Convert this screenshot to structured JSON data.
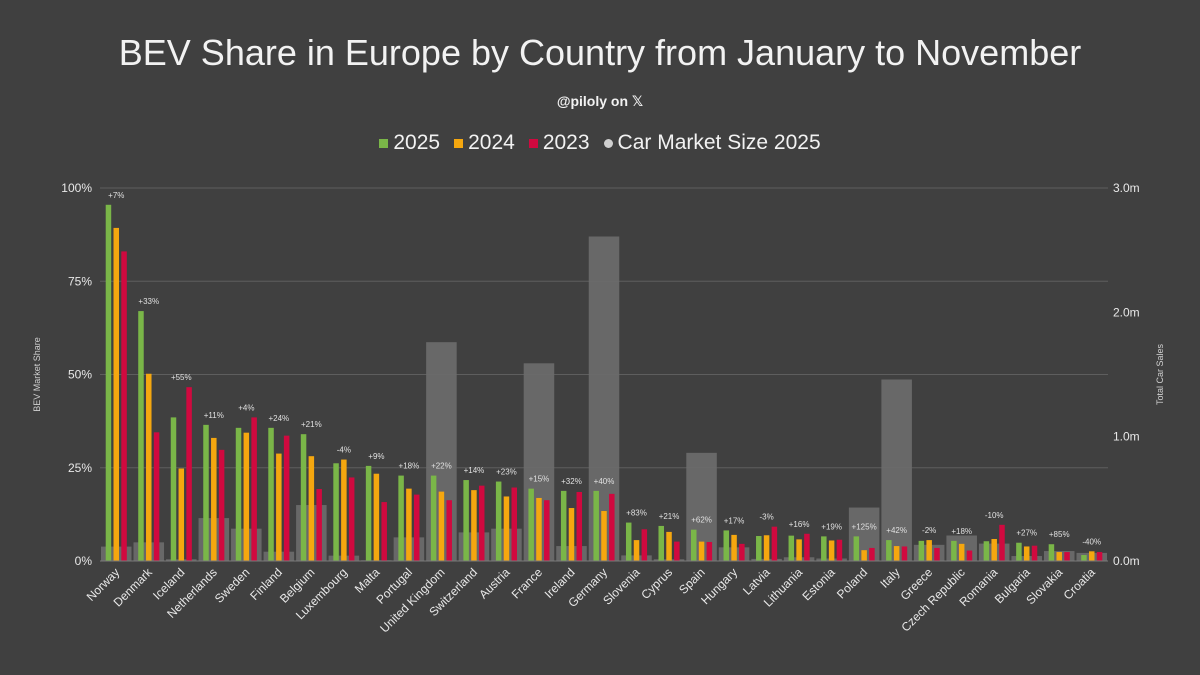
{
  "title": "BEV Share in Europe by Country from January to November",
  "subtitle": "@piloly on 𝕏",
  "legend": [
    {
      "label": "2025",
      "color": "#7ab648"
    },
    {
      "label": "2024",
      "color": "#f5a70f"
    },
    {
      "label": "2023",
      "color": "#d0093f"
    },
    {
      "label": "Car Market Size 2025",
      "color": "#d0d0d0"
    }
  ],
  "chart_data": {
    "type": "bar",
    "title": "BEV Share in Europe by Country from January to November",
    "ylabel": "BEV Market Share",
    "y2label": "Total Car Sales",
    "ylim": [
      0,
      1
    ],
    "y2lim": [
      0,
      3000000
    ],
    "yticks": [
      "0%",
      "25%",
      "50%",
      "75%",
      "100%"
    ],
    "y2ticks": [
      "0.0m",
      "1.0m",
      "2.0m",
      "3.0m"
    ],
    "grid": true,
    "legend_position": "top",
    "categories": [
      "Norway",
      "Denmark",
      "Iceland",
      "Netherlands",
      "Sweden",
      "Finland",
      "Belgium",
      "Luxembourg",
      "Malta",
      "Portugal",
      "United Kingdom",
      "Switzerland",
      "Austria",
      "France",
      "Ireland",
      "Germany",
      "Slovenia",
      "Cyprus",
      "Spain",
      "Hungary",
      "Latvia",
      "Lithuania",
      "Estonia",
      "Poland",
      "Italy",
      "Greece",
      "Czech Republic",
      "Romania",
      "Bulgaria",
      "Slovakia",
      "Croatia"
    ],
    "series": [
      {
        "name": "2025",
        "color": "#7ab648",
        "values": [
          0.955,
          0.67,
          0.385,
          0.365,
          0.357,
          0.357,
          0.34,
          0.262,
          0.255,
          0.229,
          0.229,
          0.217,
          0.213,
          0.194,
          0.188,
          0.188,
          0.103,
          0.094,
          0.084,
          0.082,
          0.067,
          0.068,
          0.066,
          0.066,
          0.056,
          0.054,
          0.054,
          0.053,
          0.049,
          0.045,
          0.016
        ]
      },
      {
        "name": "2024",
        "color": "#f5a70f",
        "values": [
          0.893,
          0.502,
          0.248,
          0.33,
          0.344,
          0.288,
          0.281,
          0.272,
          0.234,
          0.194,
          0.186,
          0.19,
          0.173,
          0.169,
          0.142,
          0.134,
          0.056,
          0.078,
          0.052,
          0.07,
          0.069,
          0.058,
          0.055,
          0.029,
          0.04,
          0.056,
          0.046,
          0.059,
          0.039,
          0.024,
          0.026
        ]
      },
      {
        "name": "2023",
        "color": "#d0093f",
        "values": [
          0.83,
          0.345,
          0.466,
          0.298,
          0.385,
          0.336,
          0.193,
          0.224,
          0.158,
          0.178,
          0.163,
          0.202,
          0.197,
          0.163,
          0.185,
          0.18,
          0.085,
          0.052,
          0.051,
          0.046,
          0.092,
          0.073,
          0.057,
          0.035,
          0.039,
          0.035,
          0.028,
          0.097,
          0.041,
          0.024,
          0.024
        ]
      }
    ],
    "market_size": {
      "name": "Car Market Size 2025",
      "color": "#6a6a6a",
      "values": [
        116000,
        150000,
        14000,
        345000,
        260000,
        75000,
        450000,
        43000,
        6000,
        190000,
        1760000,
        230000,
        260000,
        1590000,
        120000,
        2610000,
        45000,
        14000,
        870000,
        110000,
        17000,
        30000,
        20000,
        430000,
        1460000,
        130000,
        205000,
        140000,
        40000,
        80000,
        65000
      ]
    },
    "change_labels": [
      "+7%",
      "+33%",
      "+55%",
      "+11%",
      "+4%",
      "+24%",
      "+21%",
      "-4%",
      "+9%",
      "+18%",
      "+22%",
      "+14%",
      "+23%",
      "+15%",
      "+32%",
      "+40%",
      "+83%",
      "+21%",
      "+62%",
      "+17%",
      "-3%",
      "+16%",
      "+19%",
      "+125%",
      "+42%",
      "-2%",
      "+18%",
      "-10%",
      "+27%",
      "+85%",
      "-40%"
    ]
  }
}
